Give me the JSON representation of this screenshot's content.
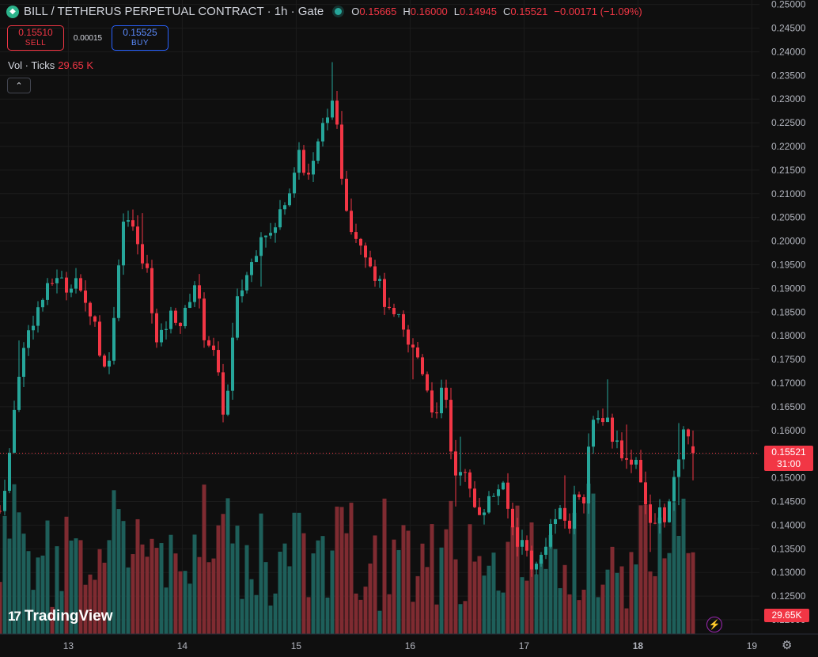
{
  "header": {
    "title": "BILL / TETHERUS PERPETUAL CONTRACT · 1h · Gate",
    "logo_icon": "diamond-icon",
    "open_label": "O",
    "open": "0.15665",
    "high_label": "H",
    "high": "0.16000",
    "low_label": "L",
    "low": "0.14945",
    "close_label": "C",
    "close": "0.15521",
    "change": "−0.00171 (−1.09%)"
  },
  "trade": {
    "sell_price": "0.15510",
    "sell_label": "SELL",
    "spread": "0.00015",
    "buy_price": "0.15525",
    "buy_label": "BUY"
  },
  "volume_legend": {
    "label": "Vol · Ticks",
    "value": "29.65 K"
  },
  "collapse_icon": "chevron-up-icon",
  "brand": "TradingView",
  "price_tag": {
    "price": "0.15521",
    "countdown": "31:00"
  },
  "volume_tag": "29.65K",
  "colors": {
    "up": "#26a69a",
    "down": "#f23645",
    "volume_up": "#1e5f5a",
    "volume_down": "#7f2b31",
    "grid": "#1c1c1c",
    "background": "#0f0f0f"
  },
  "chart_data": {
    "type": "candlestick",
    "x_ticks": [
      "13",
      "14",
      "15",
      "16",
      "17",
      "18",
      "19"
    ],
    "y_ticks": [
      "0.12000",
      "0.12500",
      "0.13000",
      "0.13500",
      "0.14000",
      "0.14500",
      "0.15000",
      "0.15500",
      "0.16000",
      "0.16500",
      "0.17000",
      "0.17500",
      "0.18000",
      "0.18500",
      "0.19000",
      "0.19500",
      "0.20000",
      "0.20500",
      "0.21000",
      "0.21500",
      "0.22000",
      "0.22500",
      "0.23000",
      "0.23500",
      "0.24000",
      "0.24500",
      "0.25000"
    ],
    "ylim": [
      0.1185,
      0.2506
    ],
    "x_start_day": 12.4,
    "x_end_day": 19.0,
    "interval_hours": 1,
    "last_price": 0.15521,
    "anchors": [
      [
        12.4,
        0.143
      ],
      [
        12.48,
        0.154
      ],
      [
        12.56,
        0.172
      ],
      [
        12.66,
        0.182
      ],
      [
        12.78,
        0.188
      ],
      [
        12.9,
        0.193
      ],
      [
        12.98,
        0.19
      ],
      [
        13.06,
        0.193
      ],
      [
        13.12,
        0.187
      ],
      [
        13.22,
        0.185
      ],
      [
        13.28,
        0.176
      ],
      [
        13.33,
        0.172
      ],
      [
        13.4,
        0.183
      ],
      [
        13.45,
        0.199
      ],
      [
        13.5,
        0.207
      ],
      [
        13.56,
        0.204
      ],
      [
        13.62,
        0.197
      ],
      [
        13.7,
        0.193
      ],
      [
        13.78,
        0.177
      ],
      [
        13.85,
        0.182
      ],
      [
        13.92,
        0.185
      ],
      [
        14.0,
        0.182
      ],
      [
        14.06,
        0.188
      ],
      [
        14.12,
        0.192
      ],
      [
        14.18,
        0.181
      ],
      [
        14.25,
        0.178
      ],
      [
        14.3,
        0.174
      ],
      [
        14.35,
        0.164
      ],
      [
        14.4,
        0.168
      ],
      [
        14.47,
        0.186
      ],
      [
        14.55,
        0.192
      ],
      [
        14.62,
        0.196
      ],
      [
        14.7,
        0.203
      ],
      [
        14.8,
        0.201
      ],
      [
        14.88,
        0.208
      ],
      [
        14.95,
        0.212
      ],
      [
        15.02,
        0.22
      ],
      [
        15.08,
        0.213
      ],
      [
        15.15,
        0.216
      ],
      [
        15.22,
        0.223
      ],
      [
        15.3,
        0.23
      ],
      [
        15.36,
        0.223
      ],
      [
        15.42,
        0.21
      ],
      [
        15.5,
        0.202
      ],
      [
        15.58,
        0.2
      ],
      [
        15.66,
        0.195
      ],
      [
        15.74,
        0.19
      ],
      [
        15.82,
        0.184
      ],
      [
        15.9,
        0.183
      ],
      [
        15.98,
        0.178
      ],
      [
        16.06,
        0.176
      ],
      [
        16.12,
        0.172
      ],
      [
        16.18,
        0.166
      ],
      [
        16.24,
        0.162
      ],
      [
        16.29,
        0.17
      ],
      [
        16.33,
        0.164
      ],
      [
        16.38,
        0.15
      ],
      [
        16.45,
        0.153
      ],
      [
        16.52,
        0.147
      ],
      [
        16.58,
        0.143
      ],
      [
        16.65,
        0.144
      ],
      [
        16.72,
        0.146
      ],
      [
        16.8,
        0.149
      ],
      [
        16.87,
        0.142
      ],
      [
        16.93,
        0.137
      ],
      [
        17.0,
        0.136
      ],
      [
        17.06,
        0.132
      ],
      [
        17.12,
        0.131
      ],
      [
        17.18,
        0.136
      ],
      [
        17.25,
        0.141
      ],
      [
        17.32,
        0.142
      ],
      [
        17.4,
        0.14
      ],
      [
        17.46,
        0.148
      ],
      [
        17.52,
        0.145
      ],
      [
        17.58,
        0.16
      ],
      [
        17.65,
        0.162
      ],
      [
        17.72,
        0.164
      ],
      [
        17.78,
        0.158
      ],
      [
        17.84,
        0.157
      ],
      [
        17.9,
        0.153
      ],
      [
        17.97,
        0.155
      ],
      [
        18.02,
        0.151
      ],
      [
        18.07,
        0.144
      ],
      [
        18.12,
        0.138
      ],
      [
        18.18,
        0.143
      ],
      [
        18.24,
        0.142
      ],
      [
        18.3,
        0.146
      ],
      [
        18.36,
        0.155
      ],
      [
        18.42,
        0.161
      ],
      [
        18.47,
        0.159
      ],
      [
        18.52,
        0.1552
      ]
    ]
  }
}
